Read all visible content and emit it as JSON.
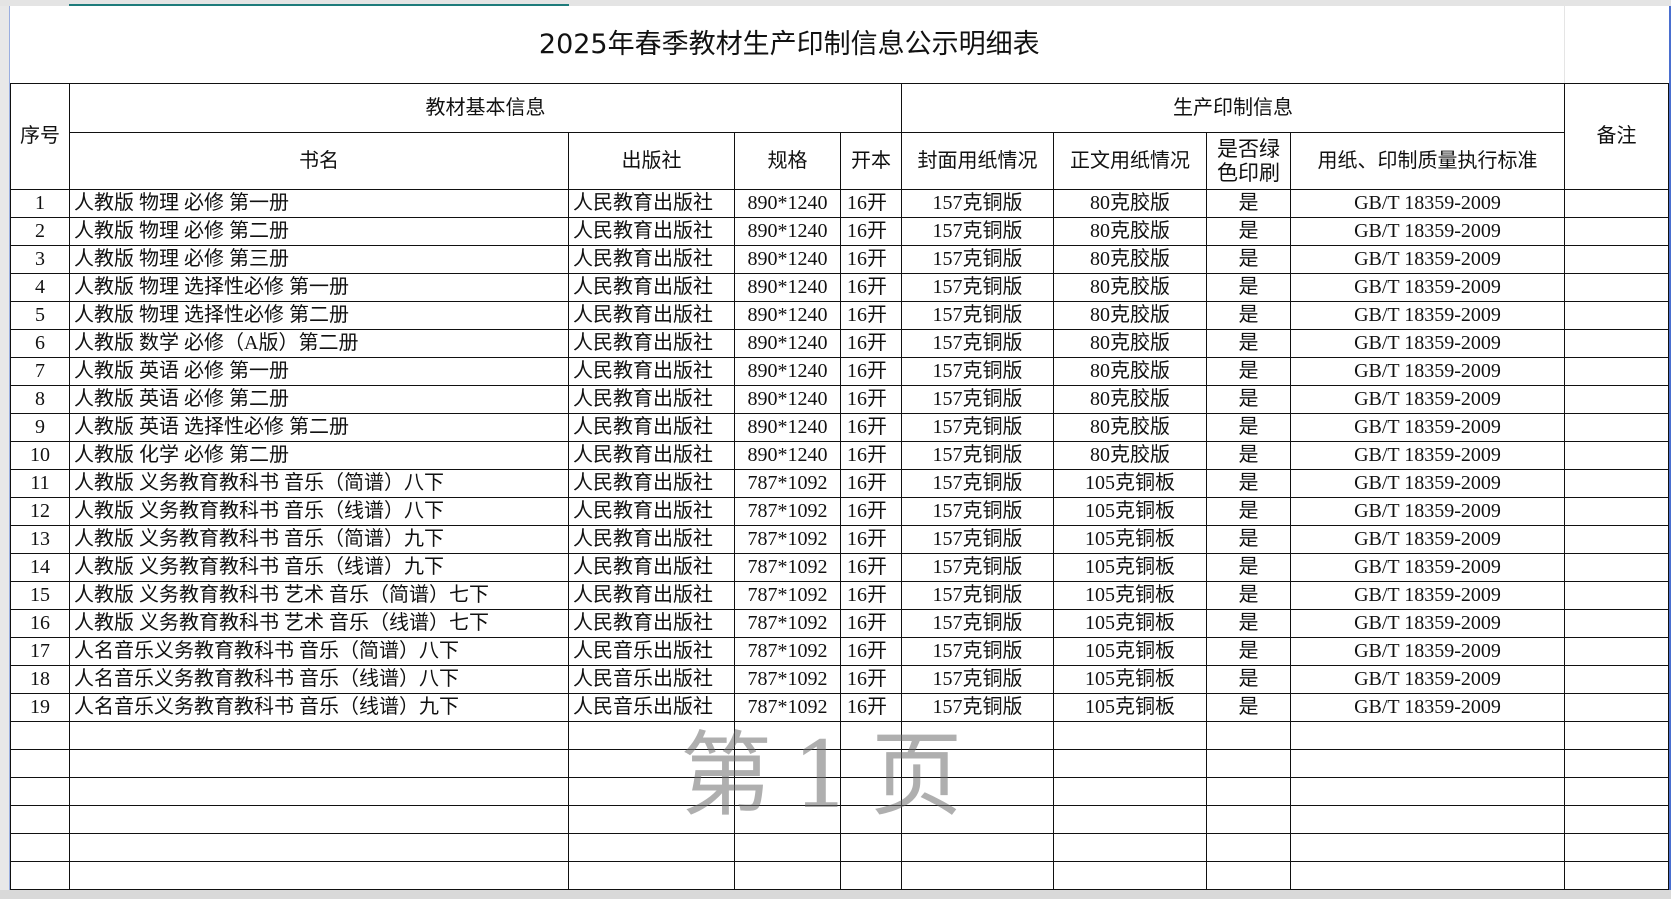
{
  "title": "2025年春季教材生产印制信息公示明细表",
  "headers": {
    "index": "序号",
    "group_basic": "教材基本信息",
    "group_production": "生产印制信息",
    "remarks": "备注",
    "book_name": "书名",
    "publisher": "出版社",
    "size": "规格",
    "format": "开本",
    "cover_paper": "封面用纸情况",
    "body_paper": "正文用纸情况",
    "green_printing": "是否绿色印刷",
    "standard": "用纸、印制质量执行标准"
  },
  "rows": [
    [
      "1",
      "人教版 物理 必修 第一册",
      "人民教育出版社",
      "890*1240",
      "16开",
      "157克铜版",
      "80克胶版",
      "是",
      "GB/T 18359-2009",
      ""
    ],
    [
      "2",
      "人教版 物理 必修 第二册",
      "人民教育出版社",
      "890*1240",
      "16开",
      "157克铜版",
      "80克胶版",
      "是",
      "GB/T 18359-2009",
      ""
    ],
    [
      "3",
      "人教版 物理 必修 第三册",
      "人民教育出版社",
      "890*1240",
      "16开",
      "157克铜版",
      "80克胶版",
      "是",
      "GB/T 18359-2009",
      ""
    ],
    [
      "4",
      "人教版 物理 选择性必修 第一册",
      "人民教育出版社",
      "890*1240",
      "16开",
      "157克铜版",
      "80克胶版",
      "是",
      "GB/T 18359-2009",
      ""
    ],
    [
      "5",
      "人教版 物理 选择性必修 第二册",
      "人民教育出版社",
      "890*1240",
      "16开",
      "157克铜版",
      "80克胶版",
      "是",
      "GB/T 18359-2009",
      ""
    ],
    [
      "6",
      "人教版 数学 必修（A版）第二册",
      "人民教育出版社",
      "890*1240",
      "16开",
      "157克铜版",
      "80克胶版",
      "是",
      "GB/T 18359-2009",
      ""
    ],
    [
      "7",
      "人教版 英语 必修 第一册",
      "人民教育出版社",
      "890*1240",
      "16开",
      "157克铜版",
      "80克胶版",
      "是",
      "GB/T 18359-2009",
      ""
    ],
    [
      "8",
      "人教版 英语 必修 第二册",
      "人民教育出版社",
      "890*1240",
      "16开",
      "157克铜版",
      "80克胶版",
      "是",
      "GB/T 18359-2009",
      ""
    ],
    [
      "9",
      "人教版 英语 选择性必修 第二册",
      "人民教育出版社",
      "890*1240",
      "16开",
      "157克铜版",
      "80克胶版",
      "是",
      "GB/T 18359-2009",
      ""
    ],
    [
      "10",
      "人教版 化学 必修 第二册",
      "人民教育出版社",
      "890*1240",
      "16开",
      "157克铜版",
      "80克胶版",
      "是",
      "GB/T 18359-2009",
      ""
    ],
    [
      "11",
      "人教版 义务教育教科书 音乐（简谱）八下",
      "人民教育出版社",
      "787*1092",
      "16开",
      "157克铜版",
      "105克铜板",
      "是",
      "GB/T 18359-2009",
      ""
    ],
    [
      "12",
      "人教版 义务教育教科书 音乐（线谱）八下",
      "人民教育出版社",
      "787*1092",
      "16开",
      "157克铜版",
      "105克铜板",
      "是",
      "GB/T 18359-2009",
      ""
    ],
    [
      "13",
      "人教版 义务教育教科书 音乐（简谱）九下",
      "人民教育出版社",
      "787*1092",
      "16开",
      "157克铜版",
      "105克铜板",
      "是",
      "GB/T 18359-2009",
      ""
    ],
    [
      "14",
      "人教版 义务教育教科书 音乐（线谱）九下",
      "人民教育出版社",
      "787*1092",
      "16开",
      "157克铜版",
      "105克铜板",
      "是",
      "GB/T 18359-2009",
      ""
    ],
    [
      "15",
      "人教版 义务教育教科书 艺术 音乐（简谱）七下",
      "人民教育出版社",
      "787*1092",
      "16开",
      "157克铜版",
      "105克铜板",
      "是",
      "GB/T 18359-2009",
      ""
    ],
    [
      "16",
      "人教版 义务教育教科书 艺术 音乐（线谱）七下",
      "人民教育出版社",
      "787*1092",
      "16开",
      "157克铜版",
      "105克铜板",
      "是",
      "GB/T 18359-2009",
      ""
    ],
    [
      "17",
      "人名音乐义务教育教科书  音乐（简谱）八下",
      "人民音乐出版社",
      "787*1092",
      "16开",
      "157克铜版",
      "105克铜板",
      "是",
      "GB/T 18359-2009",
      ""
    ],
    [
      "18",
      "人名音乐义务教育教科书  音乐（线谱）八下",
      "人民音乐出版社",
      "787*1092",
      "16开",
      "157克铜版",
      "105克铜板",
      "是",
      "GB/T 18359-2009",
      ""
    ],
    [
      "19",
      "人名音乐义务教育教科书  音乐（线谱）九下",
      "人民音乐出版社",
      "787*1092",
      "16开",
      "157克铜版",
      "105克铜板",
      "是",
      "GB/T 18359-2009",
      ""
    ]
  ],
  "empty_rows": 6,
  "watermark": "第1页",
  "colors": {
    "sheet_border": "#4a6fd0",
    "tab_indicator": "#1e7b7b"
  }
}
